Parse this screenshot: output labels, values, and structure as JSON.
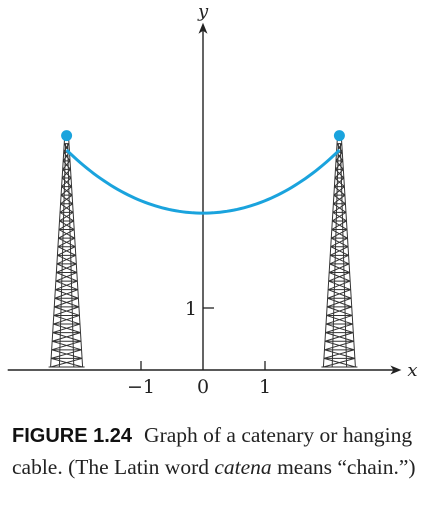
{
  "chart_data": {
    "type": "line",
    "function": "catenary",
    "curve_color": "#1aa3dd",
    "axis_color": "#222222",
    "tower_color": "#333333",
    "x": [
      -2.2,
      -2.0,
      -1.5,
      -1.0,
      -0.5,
      0.0,
      0.5,
      1.0,
      1.5,
      2.0,
      2.2
    ],
    "y": [
      3.78,
      3.57,
      3.12,
      2.79,
      2.59,
      2.53,
      2.59,
      2.79,
      3.12,
      3.57,
      3.78
    ],
    "endpoints": [
      [
        -2.2,
        3.78
      ],
      [
        2.2,
        3.78
      ]
    ],
    "xlim": [
      -3.15,
      3.2
    ],
    "ylim": [
      0,
      5.6
    ],
    "xlabel": "x",
    "ylabel": "y",
    "x_ticks": [
      {
        "value": -1,
        "label": "−1"
      },
      {
        "value": 0,
        "label": "0"
      },
      {
        "value": 1,
        "label": "1"
      }
    ],
    "y_ticks": [
      {
        "value": 1,
        "label": "1"
      }
    ],
    "towers": [
      {
        "x": -2.2
      },
      {
        "x": 2.2
      }
    ],
    "grid": false,
    "legend": "none"
  },
  "caption": {
    "figure_number": "FIGURE 1.24",
    "text_before_italic": "Graph of a catenary or hanging cable. (The Latin word ",
    "italic_word": "catena",
    "text_after_italic": " means “chain.”)"
  }
}
